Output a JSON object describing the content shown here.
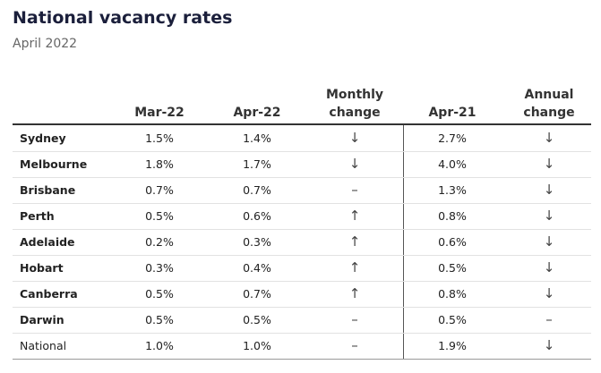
{
  "header": {
    "title": "National vacancy rates",
    "subtitle": "April 2022"
  },
  "table": {
    "columns": [
      "",
      "Mar-22",
      "Apr-22",
      "Monthly change",
      "Apr-21",
      "Annual change"
    ],
    "rows": [
      [
        "Sydney",
        "1.5%",
        "1.4%",
        "↓",
        "2.7%",
        "↓"
      ],
      [
        "Melbourne",
        "1.8%",
        "1.7%",
        "↓",
        "4.0%",
        "↓"
      ],
      [
        "Brisbane",
        "0.7%",
        "0.7%",
        "–",
        "1.3%",
        "↓"
      ],
      [
        "Perth",
        "0.5%",
        "0.6%",
        "↑",
        "0.8%",
        "↓"
      ],
      [
        "Adelaide",
        "0.2%",
        "0.3%",
        "↑",
        "0.6%",
        "↓"
      ],
      [
        "Hobart",
        "0.3%",
        "0.4%",
        "↑",
        "0.5%",
        "↓"
      ],
      [
        "Canberra",
        "0.5%",
        "0.7%",
        "↑",
        "0.8%",
        "↓"
      ],
      [
        "Darwin",
        "0.5%",
        "0.5%",
        "–",
        "0.5%",
        "–"
      ],
      [
        "National",
        "1.0%",
        "1.0%",
        "–",
        "1.9%",
        "↓"
      ]
    ]
  }
}
